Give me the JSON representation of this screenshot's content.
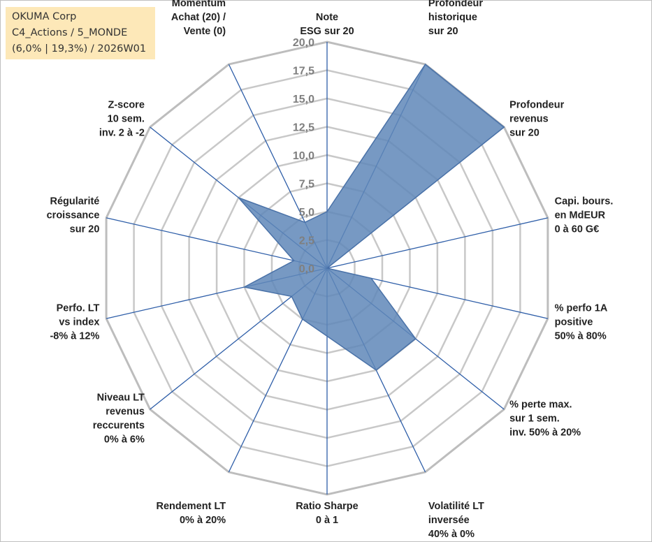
{
  "info": {
    "line1": "OKUMA Corp",
    "line2": "C4_Actions / 5_MONDE",
    "line3": "(6,0% | 19,3%) / 2026W01"
  },
  "colors": {
    "fill": "#5f87b8",
    "fill_stroke": "#4a72a8",
    "spoke": "#2e5ea8",
    "grid": "#c8c8c8",
    "grid_outer": "#bdbdbd",
    "tick": "#7f7f7f",
    "label": "#222222"
  },
  "chart_data": {
    "type": "radar",
    "title": "",
    "rmin": 0,
    "rmax": 20,
    "ticks": [
      "0,0",
      "2,5",
      "5,0",
      "7,5",
      "10,0",
      "12,5",
      "15,0",
      "17,5",
      "20,0"
    ],
    "axes": [
      {
        "label": [
          "Note",
          "ESG sur 20"
        ],
        "value": 5.0
      },
      {
        "label": [
          "Profondeur",
          "historique",
          "sur 20"
        ],
        "value": 20.0
      },
      {
        "label": [
          "Profondeur",
          "revenus",
          "sur 20"
        ],
        "value": 20.0
      },
      {
        "label": [
          "Capi. bours.",
          "en MdEUR",
          "0 à 60 G€"
        ],
        "value": 0.0
      },
      {
        "label": [
          "% perfo 1A",
          "positive",
          "50% à 80%"
        ],
        "value": 4.0
      },
      {
        "label": [
          "% perte max.",
          "sur 1 sem.",
          "inv. 50% à 20%"
        ],
        "value": 10.0
      },
      {
        "label": [
          "Volatilité LT",
          "inversée",
          "40% à 0%"
        ],
        "value": 10.0
      },
      {
        "label": [
          "Ratio Sharpe",
          "0 à 1"
        ],
        "value": 6.0
      },
      {
        "label": [
          "Rendement LT",
          "0% à 20%"
        ],
        "value": 5.0
      },
      {
        "label": [
          "Niveau LT",
          "revenus",
          "reccurents",
          "0% à 6%"
        ],
        "value": 4.0
      },
      {
        "label": [
          "Perfo. LT",
          "vs index",
          "-8% à 12%"
        ],
        "value": 7.5
      },
      {
        "label": [
          "Régularité",
          "croissance",
          "sur 20"
        ],
        "value": 3.0
      },
      {
        "label": [
          "Z-score",
          "10 sem.",
          "inv. 2 à -2"
        ],
        "value": 10.0
      },
      {
        "label": [
          "Momentum",
          "Achat (20) /",
          "Vente (0)"
        ],
        "value": 4.5
      }
    ]
  }
}
